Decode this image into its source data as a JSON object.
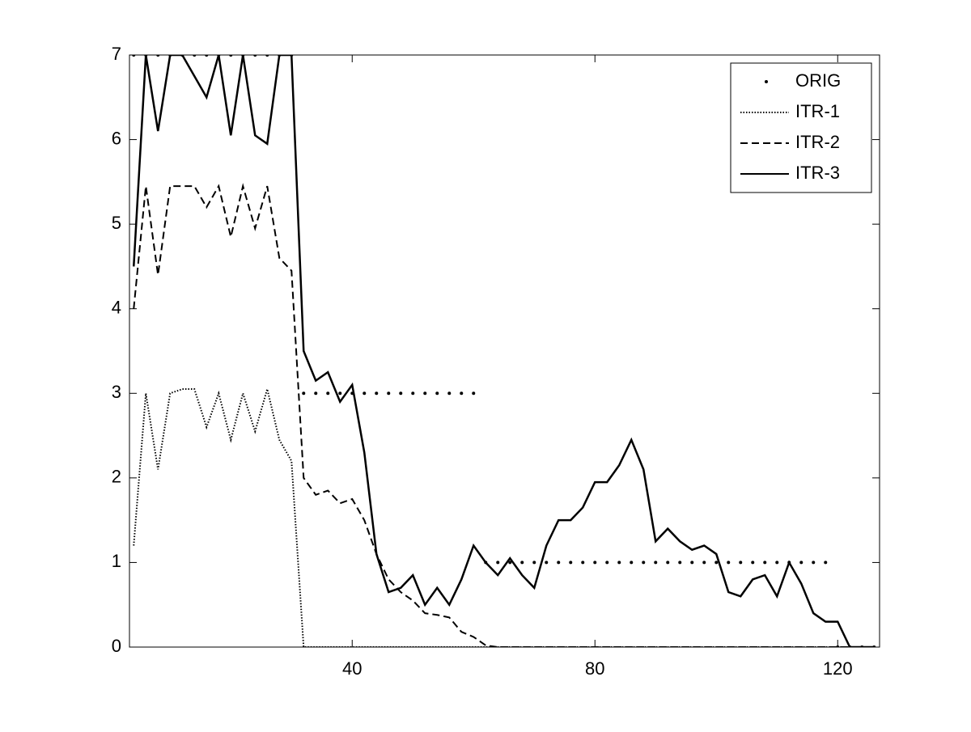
{
  "chart_data": {
    "type": "line",
    "x": [
      4,
      6,
      8,
      10,
      12,
      14,
      16,
      18,
      20,
      22,
      24,
      26,
      28,
      30,
      32,
      34,
      36,
      38,
      40,
      42,
      44,
      46,
      48,
      50,
      52,
      54,
      56,
      58,
      60,
      62,
      64,
      66,
      68,
      70,
      72,
      74,
      76,
      78,
      80,
      82,
      84,
      86,
      88,
      90,
      92,
      94,
      96,
      98,
      100,
      102,
      104,
      106,
      108,
      110,
      112,
      114,
      116,
      118,
      120,
      122,
      124,
      126
    ],
    "xlim": [
      3.3,
      126.9
    ],
    "xticks": [
      40,
      80,
      120
    ],
    "ylim": [
      0,
      7
    ],
    "yticks": [
      0,
      1,
      2,
      3,
      4,
      5,
      6,
      7
    ],
    "grid": false,
    "legend": "top-right",
    "series": [
      {
        "name": "ORIG",
        "color": "#000000",
        "style": "marker",
        "values": [
          7,
          7,
          7,
          7,
          7,
          7,
          7,
          7,
          7,
          7,
          7,
          7,
          7,
          7,
          3,
          3,
          3,
          3,
          3,
          3,
          3,
          3,
          3,
          3,
          3,
          3,
          3,
          3,
          3,
          1,
          1,
          1,
          1,
          1,
          1,
          1,
          1,
          1,
          1,
          1,
          1,
          1,
          1,
          1,
          1,
          1,
          1,
          1,
          1,
          1,
          1,
          1,
          1,
          1,
          1,
          1,
          1,
          1,
          0,
          0,
          0,
          0
        ]
      },
      {
        "name": "ITR-1",
        "color": "#000000",
        "style": "dotted",
        "values": [
          1.2,
          3.0,
          2.1,
          3.0,
          3.05,
          3.05,
          2.6,
          3.0,
          2.45,
          3.0,
          2.55,
          3.05,
          2.45,
          2.2,
          0,
          0,
          0,
          0,
          0,
          0,
          0,
          0,
          0,
          0,
          0,
          0,
          0,
          0,
          0,
          0,
          0,
          0,
          0,
          0,
          0,
          0,
          0,
          0,
          0,
          0,
          0,
          0,
          0,
          0,
          0,
          0,
          0,
          0,
          0,
          0,
          0,
          0,
          0,
          0,
          0,
          0,
          0,
          0,
          0,
          0,
          0,
          0
        ]
      },
      {
        "name": "ITR-2",
        "color": "#000000",
        "style": "dashed",
        "values": [
          4.0,
          5.45,
          4.4,
          5.45,
          5.45,
          5.45,
          5.2,
          5.45,
          4.85,
          5.45,
          4.95,
          5.45,
          4.6,
          4.45,
          2.0,
          1.8,
          1.85,
          1.7,
          1.75,
          1.5,
          1.1,
          0.8,
          0.65,
          0.55,
          0.4,
          0.38,
          0.35,
          0.18,
          0.12,
          0.02,
          0,
          0,
          0,
          0,
          0,
          0,
          0,
          0,
          0,
          0,
          0,
          0,
          0,
          0,
          0,
          0,
          0,
          0,
          0,
          0,
          0,
          0,
          0,
          0,
          0,
          0,
          0,
          0,
          0,
          0,
          0,
          0
        ]
      },
      {
        "name": "ITR-3",
        "color": "#000000",
        "style": "solid",
        "values": [
          4.5,
          7,
          6.1,
          7,
          7,
          6.75,
          6.5,
          7,
          6.05,
          7,
          6.05,
          5.95,
          7,
          7,
          3.5,
          3.15,
          3.25,
          2.9,
          3.1,
          2.3,
          1.1,
          0.65,
          0.7,
          0.85,
          0.5,
          0.7,
          0.5,
          0.8,
          1.2,
          1.0,
          0.85,
          1.05,
          0.85,
          0.7,
          1.2,
          1.5,
          1.5,
          1.65,
          1.95,
          1.95,
          2.15,
          2.45,
          2.1,
          1.25,
          1.4,
          1.25,
          1.15,
          1.2,
          1.1,
          0.65,
          0.6,
          0.8,
          0.85,
          0.6,
          1.0,
          0.75,
          0.4,
          0.3,
          0.3,
          0,
          0,
          0
        ]
      }
    ]
  }
}
